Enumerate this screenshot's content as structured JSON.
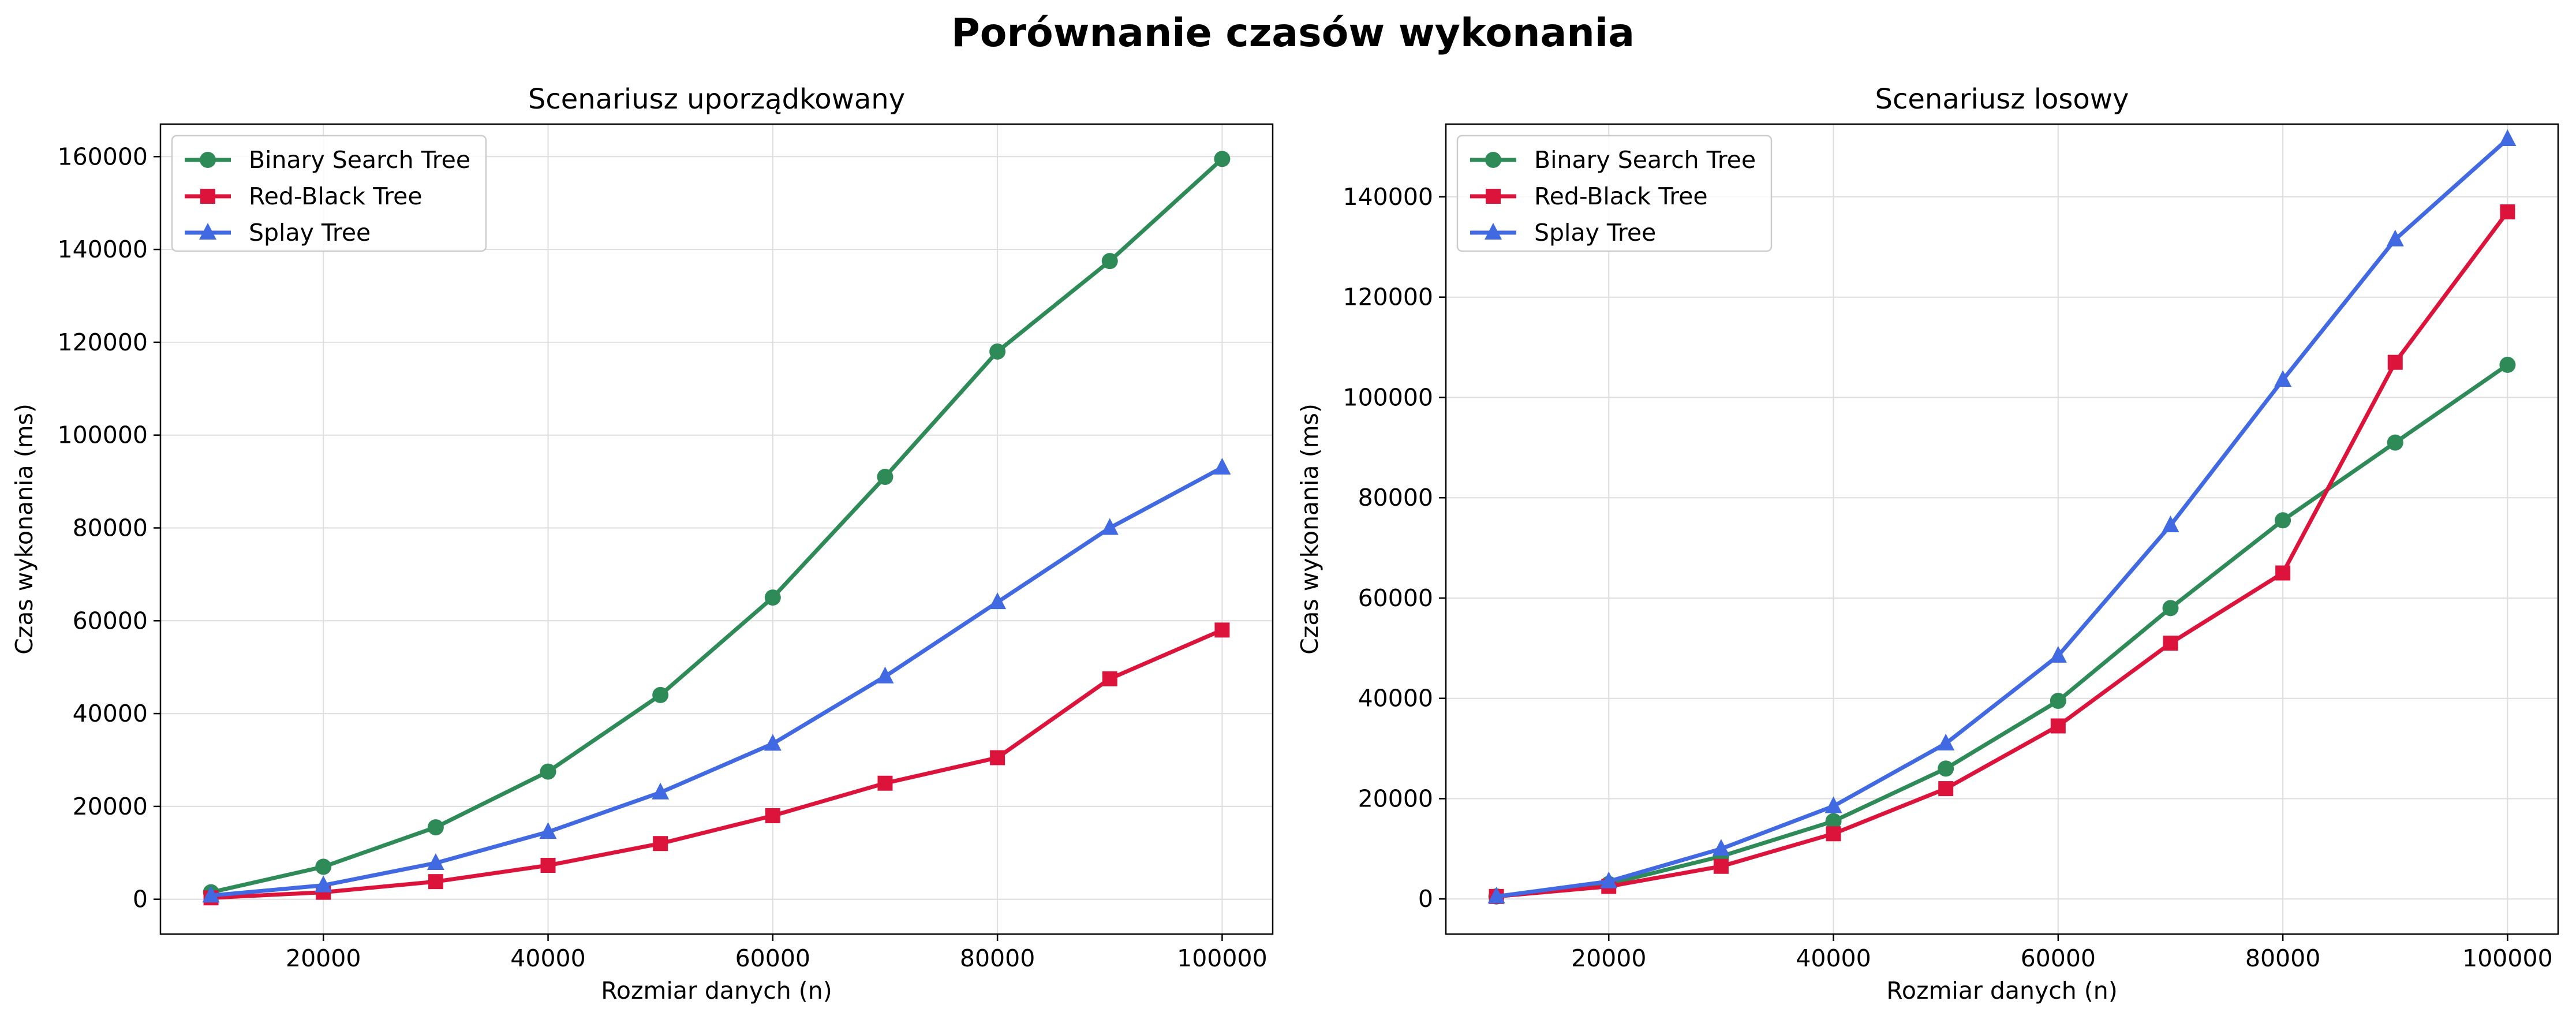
{
  "figure": {
    "title": "Porównanie czasów wykonania"
  },
  "chart_data": [
    {
      "type": "line",
      "title": "Scenariusz uporządkowany",
      "xlabel": "Rozmiar danych (n)",
      "ylabel": "Czas wykonania (ms)",
      "x": [
        10000,
        20000,
        30000,
        40000,
        50000,
        60000,
        70000,
        80000,
        90000,
        100000
      ],
      "xlim": [
        5500,
        104500
      ],
      "ylim": [
        -7500,
        167000
      ],
      "xticks": [
        20000,
        40000,
        60000,
        80000,
        100000
      ],
      "yticks": [
        0,
        20000,
        40000,
        60000,
        80000,
        100000,
        120000,
        140000,
        160000
      ],
      "grid": true,
      "legend_position": "top-left",
      "series": [
        {
          "name": "Binary Search Tree",
          "color": "#2e8b57",
          "marker": "circle",
          "values": [
            1500,
            7000,
            15500,
            27500,
            44000,
            65000,
            91000,
            118000,
            137500,
            159500
          ]
        },
        {
          "name": "Red-Black Tree",
          "color": "#dc143c",
          "marker": "square",
          "values": [
            300,
            1500,
            3800,
            7300,
            12000,
            18000,
            25000,
            30500,
            47500,
            58000
          ]
        },
        {
          "name": "Splay Tree",
          "color": "#4169e1",
          "marker": "triangle",
          "values": [
            800,
            3000,
            7800,
            14500,
            23000,
            33500,
            48000,
            64000,
            80000,
            93000
          ]
        }
      ]
    },
    {
      "type": "line",
      "title": "Scenariusz losowy",
      "xlabel": "Rozmiar danych (n)",
      "ylabel": "Czas wykonania (ms)",
      "x": [
        10000,
        20000,
        30000,
        40000,
        50000,
        60000,
        70000,
        80000,
        90000,
        100000
      ],
      "xlim": [
        5500,
        104500
      ],
      "ylim": [
        -7000,
        154500
      ],
      "xticks": [
        20000,
        40000,
        60000,
        80000,
        100000
      ],
      "yticks": [
        0,
        20000,
        40000,
        60000,
        80000,
        100000,
        120000,
        140000
      ],
      "grid": true,
      "legend_position": "top-left",
      "series": [
        {
          "name": "Binary Search Tree",
          "color": "#2e8b57",
          "marker": "circle",
          "values": [
            500,
            3000,
            8500,
            15500,
            26000,
            39500,
            58000,
            75500,
            91000,
            106500
          ]
        },
        {
          "name": "Red-Black Tree",
          "color": "#dc143c",
          "marker": "square",
          "values": [
            500,
            2500,
            6500,
            13000,
            22000,
            34500,
            51000,
            65000,
            107000,
            137000
          ]
        },
        {
          "name": "Splay Tree",
          "color": "#4169e1",
          "marker": "triangle",
          "values": [
            500,
            3500,
            10000,
            18500,
            31000,
            48500,
            74500,
            103500,
            131500,
            151500
          ]
        }
      ]
    }
  ]
}
